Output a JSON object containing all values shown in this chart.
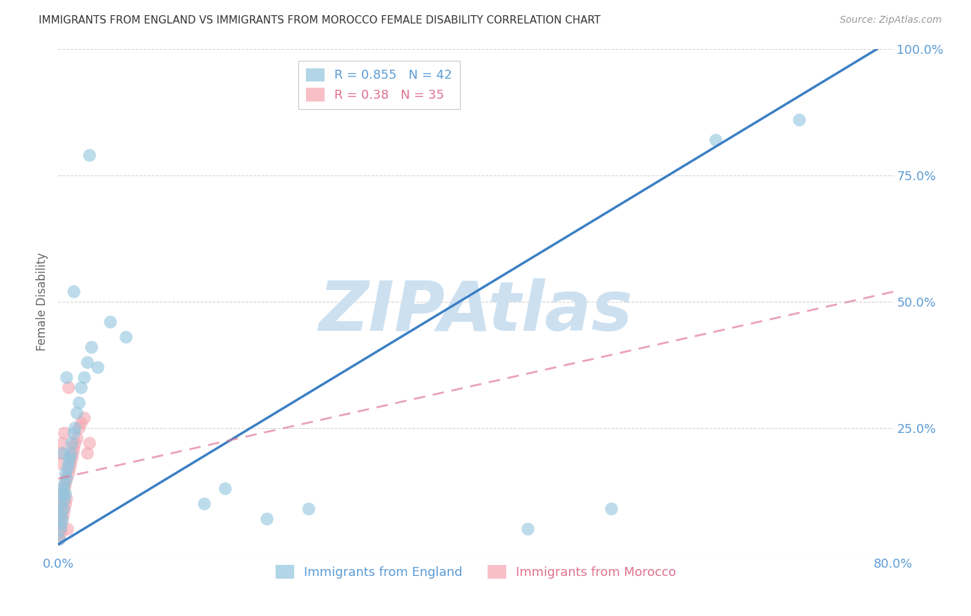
{
  "title": "IMMIGRANTS FROM ENGLAND VS IMMIGRANTS FROM MOROCCO FEMALE DISABILITY CORRELATION CHART",
  "source": "Source: ZipAtlas.com",
  "ylabel": "Female Disability",
  "xlim": [
    0.0,
    0.8
  ],
  "ylim": [
    0.0,
    1.0
  ],
  "england_R": 0.855,
  "england_N": 42,
  "morocco_R": 0.38,
  "morocco_N": 35,
  "england_color": "#92c5de",
  "morocco_color": "#f4a6b0",
  "england_line_color": "#3b7fc4",
  "morocco_line_color": "#e07090",
  "watermark": "ZIPAtlas",
  "watermark_color": "#cce0f0",
  "england_x": [
    0.001,
    0.002,
    0.002,
    0.003,
    0.003,
    0.004,
    0.004,
    0.005,
    0.005,
    0.006,
    0.006,
    0.007,
    0.007,
    0.008,
    0.009,
    0.01,
    0.011,
    0.012,
    0.013,
    0.015,
    0.016,
    0.018,
    0.02,
    0.022,
    0.025,
    0.028,
    0.032,
    0.038,
    0.05,
    0.065,
    0.14,
    0.16,
    0.2,
    0.24,
    0.45,
    0.53,
    0.63,
    0.71,
    0.005,
    0.008,
    0.015,
    0.03
  ],
  "england_y": [
    0.03,
    0.05,
    0.08,
    0.06,
    0.1,
    0.07,
    0.12,
    0.09,
    0.13,
    0.11,
    0.14,
    0.12,
    0.16,
    0.15,
    0.17,
    0.18,
    0.19,
    0.2,
    0.22,
    0.24,
    0.25,
    0.28,
    0.3,
    0.33,
    0.35,
    0.38,
    0.41,
    0.37,
    0.46,
    0.43,
    0.1,
    0.13,
    0.07,
    0.09,
    0.05,
    0.09,
    0.82,
    0.86,
    0.2,
    0.35,
    0.52,
    0.79
  ],
  "morocco_x": [
    0.001,
    0.001,
    0.002,
    0.002,
    0.003,
    0.003,
    0.004,
    0.004,
    0.005,
    0.005,
    0.006,
    0.006,
    0.007,
    0.007,
    0.008,
    0.008,
    0.009,
    0.01,
    0.011,
    0.012,
    0.013,
    0.014,
    0.015,
    0.016,
    0.018,
    0.02,
    0.022,
    0.025,
    0.028,
    0.03,
    0.002,
    0.003,
    0.004,
    0.006,
    0.01
  ],
  "morocco_y": [
    0.03,
    0.06,
    0.04,
    0.08,
    0.05,
    0.1,
    0.07,
    0.11,
    0.08,
    0.12,
    0.09,
    0.13,
    0.1,
    0.14,
    0.11,
    0.15,
    0.05,
    0.16,
    0.17,
    0.18,
    0.19,
    0.2,
    0.21,
    0.22,
    0.23,
    0.25,
    0.26,
    0.27,
    0.2,
    0.22,
    0.18,
    0.2,
    0.22,
    0.24,
    0.33
  ],
  "england_line_x0": 0.0,
  "england_line_y0": 0.02,
  "england_line_x1": 0.8,
  "england_line_y1": 1.02,
  "morocco_line_x0": 0.0,
  "morocco_line_y0": 0.15,
  "morocco_line_x1": 0.8,
  "morocco_line_y1": 0.52,
  "background_color": "#ffffff",
  "grid_color": "#d0d0d0"
}
